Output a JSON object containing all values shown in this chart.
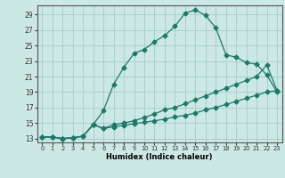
{
  "title": "",
  "xlabel": "Humidex (Indice chaleur)",
  "ylabel": "",
  "bg_color": "#cce8e4",
  "line_color": "#1a7a6a",
  "grid_color": "#aacfcc",
  "x_ticks": [
    0,
    1,
    2,
    3,
    4,
    5,
    6,
    7,
    8,
    9,
    10,
    11,
    12,
    13,
    14,
    15,
    16,
    17,
    18,
    19,
    20,
    21,
    22,
    23
  ],
  "y_ticks": [
    13,
    15,
    17,
    19,
    21,
    23,
    25,
    27,
    29
  ],
  "xlim": [
    -0.5,
    23.5
  ],
  "ylim": [
    12.5,
    30.2
  ],
  "curve1_x": [
    0,
    1,
    2,
    3,
    4,
    5,
    6,
    7,
    8,
    9,
    10,
    11,
    12,
    13,
    14,
    15,
    16,
    17,
    18,
    19,
    20,
    21,
    22,
    23
  ],
  "curve1_y": [
    13.2,
    13.2,
    13.0,
    13.1,
    13.3,
    14.8,
    16.6,
    20.0,
    22.2,
    24.0,
    24.5,
    25.5,
    26.3,
    27.5,
    29.2,
    29.6,
    28.9,
    27.3,
    23.8,
    23.5,
    22.8,
    22.6,
    21.2,
    19.0
  ],
  "curve2_x": [
    0,
    1,
    2,
    3,
    4,
    5,
    6,
    7,
    8,
    9,
    10,
    11,
    12,
    13,
    14,
    15,
    16,
    17,
    18,
    19,
    20,
    21,
    22,
    23
  ],
  "curve2_y": [
    13.2,
    13.2,
    13.0,
    13.1,
    13.3,
    14.8,
    14.3,
    14.8,
    15.0,
    15.3,
    15.7,
    16.2,
    16.7,
    17.0,
    17.5,
    18.0,
    18.5,
    19.0,
    19.5,
    20.0,
    20.5,
    21.0,
    22.5,
    19.2
  ],
  "curve3_x": [
    0,
    1,
    2,
    3,
    4,
    5,
    6,
    7,
    8,
    9,
    10,
    11,
    12,
    13,
    14,
    15,
    16,
    17,
    18,
    19,
    20,
    21,
    22,
    23
  ],
  "curve3_y": [
    13.2,
    13.2,
    13.0,
    13.1,
    13.3,
    14.8,
    14.3,
    14.5,
    14.7,
    14.9,
    15.1,
    15.3,
    15.5,
    15.8,
    16.0,
    16.3,
    16.7,
    17.0,
    17.4,
    17.8,
    18.2,
    18.6,
    19.0,
    19.2
  ]
}
